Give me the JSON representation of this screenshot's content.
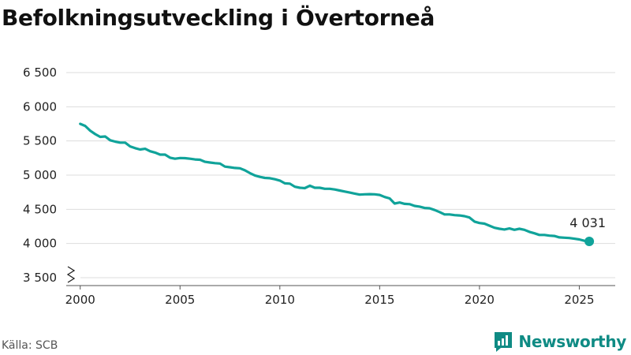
{
  "title": "Befolkningsutveckling i Övertorneå",
  "source": "Källa: SCB",
  "brand": {
    "name": "Newsworthy",
    "icon": "newsworthy-logo-icon"
  },
  "colors": {
    "line": "#10a39a",
    "grid": "#dddddd",
    "brand": "#0f8b84"
  },
  "chart_data": {
    "type": "line",
    "title": "Befolkningsutveckling i Övertorneå",
    "xlabel": "",
    "ylabel": "",
    "xlim": [
      1999.3,
      2026.8
    ],
    "ylim": [
      3500,
      6500
    ],
    "y_axis_break": true,
    "grid": "horizontal",
    "x_ticks": [
      2000,
      2005,
      2010,
      2015,
      2020,
      2025
    ],
    "x_tick_labels": [
      "2000",
      "2005",
      "2010",
      "2015",
      "2020",
      "2025"
    ],
    "y_ticks": [
      3500,
      4000,
      4500,
      5000,
      5500,
      6000,
      6500
    ],
    "y_tick_labels": [
      "3 500",
      "4 000",
      "4 500",
      "5 000",
      "5 500",
      "6 000",
      "6 500"
    ],
    "series": [
      {
        "x": [
          2000.0,
          2000.25,
          2000.5,
          2000.75,
          2001.0,
          2001.25,
          2001.5,
          2001.75,
          2002.0,
          2002.25,
          2002.5,
          2002.75,
          2003.0,
          2003.25,
          2003.5,
          2003.75,
          2004.0,
          2004.25,
          2004.5,
          2004.75,
          2005.0,
          2005.25,
          2005.5,
          2005.75,
          2006.0,
          2006.25,
          2006.5,
          2006.75,
          2007.0,
          2007.25,
          2007.5,
          2007.75,
          2008.0,
          2008.25,
          2008.5,
          2008.75,
          2009.0,
          2009.25,
          2009.5,
          2009.75,
          2010.0,
          2010.25,
          2010.5,
          2010.75,
          2011.0,
          2011.25,
          2011.5,
          2011.75,
          2012.0,
          2012.25,
          2012.5,
          2012.75,
          2013.0,
          2013.25,
          2013.5,
          2013.75,
          2014.0,
          2014.25,
          2014.5,
          2014.75,
          2015.0,
          2015.25,
          2015.5,
          2015.75,
          2016.0,
          2016.25,
          2016.5,
          2016.75,
          2017.0,
          2017.25,
          2017.5,
          2017.75,
          2018.0,
          2018.25,
          2018.5,
          2018.75,
          2019.0,
          2019.25,
          2019.5,
          2019.75,
          2020.0,
          2020.25,
          2020.5,
          2020.75,
          2021.0,
          2021.25,
          2021.5,
          2021.75,
          2022.0,
          2022.25,
          2022.5,
          2022.75,
          2023.0,
          2023.25,
          2023.5,
          2023.75,
          2024.0,
          2024.25,
          2024.5,
          2024.75,
          2025.0,
          2025.25,
          2025.5
        ],
        "values": [
          5750,
          5720,
          5650,
          5600,
          5560,
          5565,
          5510,
          5490,
          5475,
          5475,
          5420,
          5395,
          5375,
          5385,
          5350,
          5330,
          5300,
          5300,
          5255,
          5240,
          5250,
          5248,
          5240,
          5230,
          5225,
          5195,
          5185,
          5175,
          5170,
          5125,
          5115,
          5105,
          5100,
          5070,
          5030,
          4995,
          4975,
          4960,
          4955,
          4940,
          4920,
          4880,
          4875,
          4830,
          4815,
          4810,
          4845,
          4815,
          4815,
          4800,
          4800,
          4790,
          4775,
          4760,
          4745,
          4730,
          4715,
          4720,
          4722,
          4720,
          4710,
          4680,
          4660,
          4585,
          4600,
          4580,
          4575,
          4550,
          4540,
          4520,
          4515,
          4490,
          4460,
          4425,
          4425,
          4415,
          4410,
          4400,
          4380,
          4320,
          4300,
          4290,
          4260,
          4230,
          4215,
          4205,
          4220,
          4200,
          4215,
          4200,
          4170,
          4150,
          4125,
          4125,
          4115,
          4110,
          4090,
          4085,
          4080,
          4070,
          4060,
          4040,
          4031
        ]
      }
    ],
    "annotations": [
      {
        "x": 2025.5,
        "y": 4031,
        "text": "4 031"
      }
    ]
  }
}
